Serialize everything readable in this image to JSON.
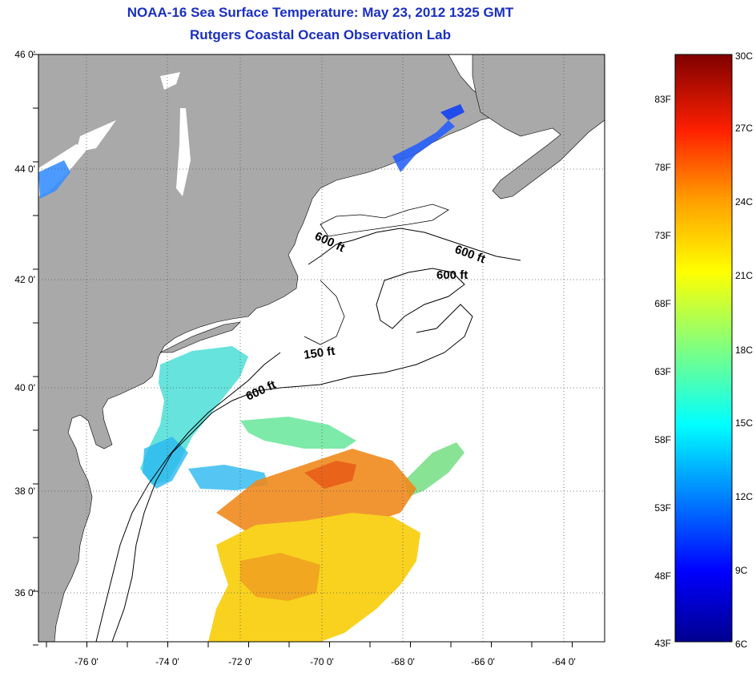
{
  "title": "NOAA-16 Sea Surface Temperature:  May 23, 2012 1325 GMT",
  "subtitle": "Rutgers Coastal Ocean Observation Lab",
  "lat_labels": [
    "46 0'",
    "44 0'",
    "42 0'",
    "40 0'",
    "38 0'",
    "36 0'"
  ],
  "lon_labels": [
    "-76 0'",
    "-74 0'",
    "-72 0'",
    "-70 0'",
    "-68 0'",
    "-66 0'",
    "-64 0'"
  ],
  "contour_labels": [
    "600 ft",
    "600 ft",
    "600 ft",
    "150 ft",
    "600 ft"
  ],
  "colorbar": {
    "celsius": [
      "30C",
      "27C",
      "24C",
      "21C",
      "18C",
      "15C",
      "12C",
      "9C",
      "6C"
    ],
    "fahrenheit": [
      "83F",
      "78F",
      "73F",
      "68F",
      "63F",
      "58F",
      "53F",
      "48F",
      "43F"
    ],
    "colors": [
      "#00008f",
      "#0000ff",
      "#0080ff",
      "#00ffff",
      "#80ff80",
      "#ffff00",
      "#ff8000",
      "#ff0000",
      "#800000"
    ]
  },
  "palette": {
    "land": "#a9a9a9",
    "ocean": "#ffffff",
    "title": "#1a2fbf"
  }
}
